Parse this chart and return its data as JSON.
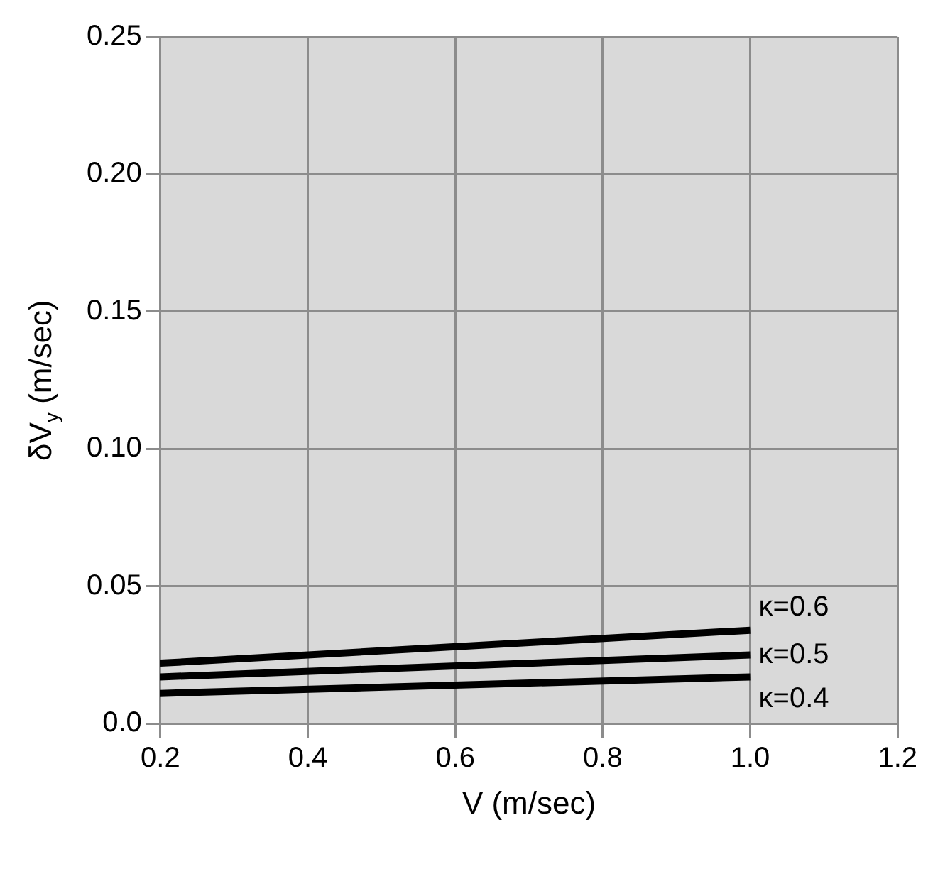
{
  "chart_data": {
    "type": "line",
    "xlabel": "V (m/sec)",
    "ylabel": "δV$_{y}$ (m/sec)",
    "x": [
      0.2,
      1.0
    ],
    "series": [
      {
        "name": "κ=0.6",
        "color": "#000000",
        "values": [
          0.022,
          0.034
        ]
      },
      {
        "name": "κ=0.5",
        "color": "#000000",
        "values": [
          0.017,
          0.025
        ]
      },
      {
        "name": "κ=0.4",
        "color": "#000000",
        "values": [
          0.011,
          0.017
        ]
      }
    ],
    "xlim": [
      0.2,
      1.2
    ],
    "xticks": [
      {
        "value": 0.2,
        "label": "0.2"
      },
      {
        "value": 0.4,
        "label": "0.4"
      },
      {
        "value": 0.6,
        "label": "0.6"
      },
      {
        "value": 0.8,
        "label": "0.8"
      },
      {
        "value": 1.0,
        "label": "1.0"
      },
      {
        "value": 1.2,
        "label": "1.2"
      }
    ],
    "ylim": [
      0,
      0.25
    ],
    "yticks": [
      {
        "value": 0,
        "label": "0.0"
      },
      {
        "value": 0.05,
        "label": "0.05"
      },
      {
        "value": 0.1,
        "label": "0.10"
      },
      {
        "value": 0.15,
        "label": "0.15"
      },
      {
        "value": 0.2,
        "label": "0.20"
      },
      {
        "value": 0.25,
        "label": "0.25"
      }
    ],
    "grid": true,
    "legend": false,
    "marker": "none",
    "line_style": "solid"
  }
}
